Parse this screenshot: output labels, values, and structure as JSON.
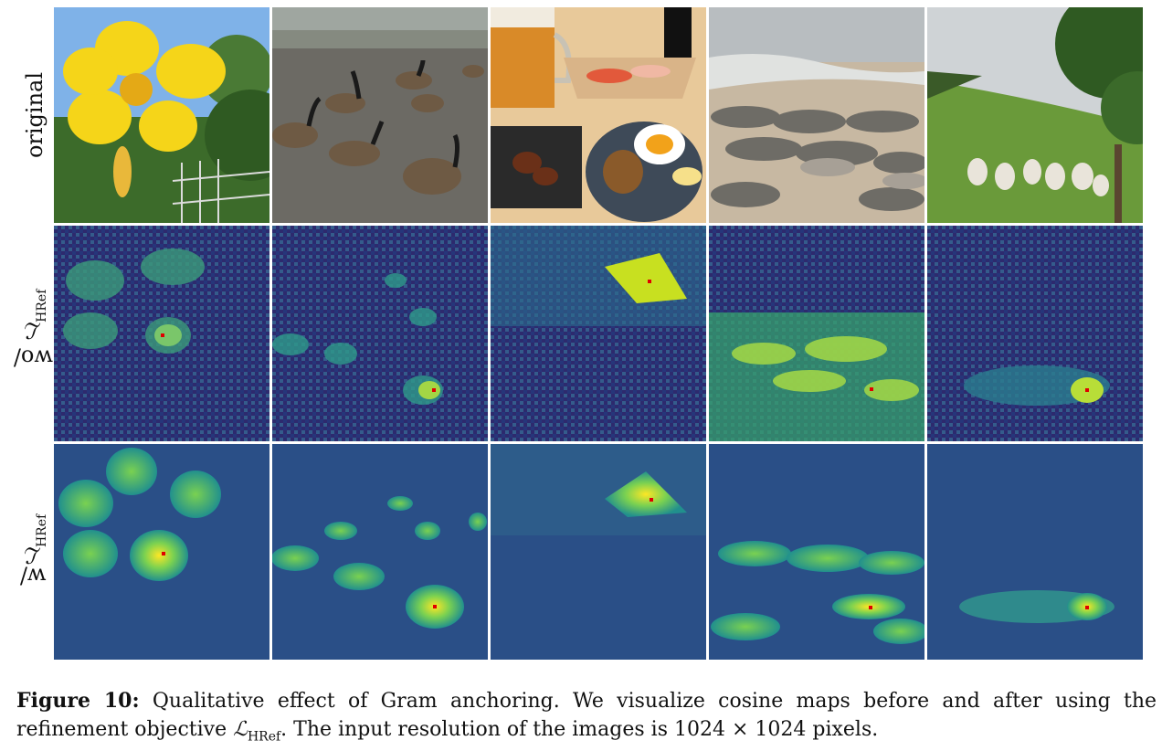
{
  "rows": [
    {
      "label_text": "original",
      "label_math": "",
      "label_sub": ""
    },
    {
      "label_text": "wo/ ",
      "label_math": "ℒ",
      "label_sub": "HRef"
    },
    {
      "label_text": "w/ ",
      "label_math": "ℒ",
      "label_sub": "HRef"
    }
  ],
  "columns": [
    "flower",
    "geese",
    "food",
    "seals",
    "sheep"
  ],
  "caption": {
    "fig_label": "Figure 10:",
    "text_1": " Qualitative effect of Gram anchoring. We visualize cosine maps before and after using the refinement objective ",
    "math": "ℒ",
    "sub": "HRef",
    "text_2": ". The input resolution of the images is 1024 × 1024 pixels."
  },
  "colors": {
    "map_low": "#2d2a6e",
    "map_mid": "#21908d",
    "map_high": "#fde725",
    "marker": "#e00000",
    "flower": "#f5d519",
    "sky": "#7fb2e8",
    "foliage": "#3c6b2a",
    "pavement": "#6c6a64",
    "sand": "#c7b8a2",
    "grass": "#6a9a3a",
    "wood": "#e8c99a"
  }
}
